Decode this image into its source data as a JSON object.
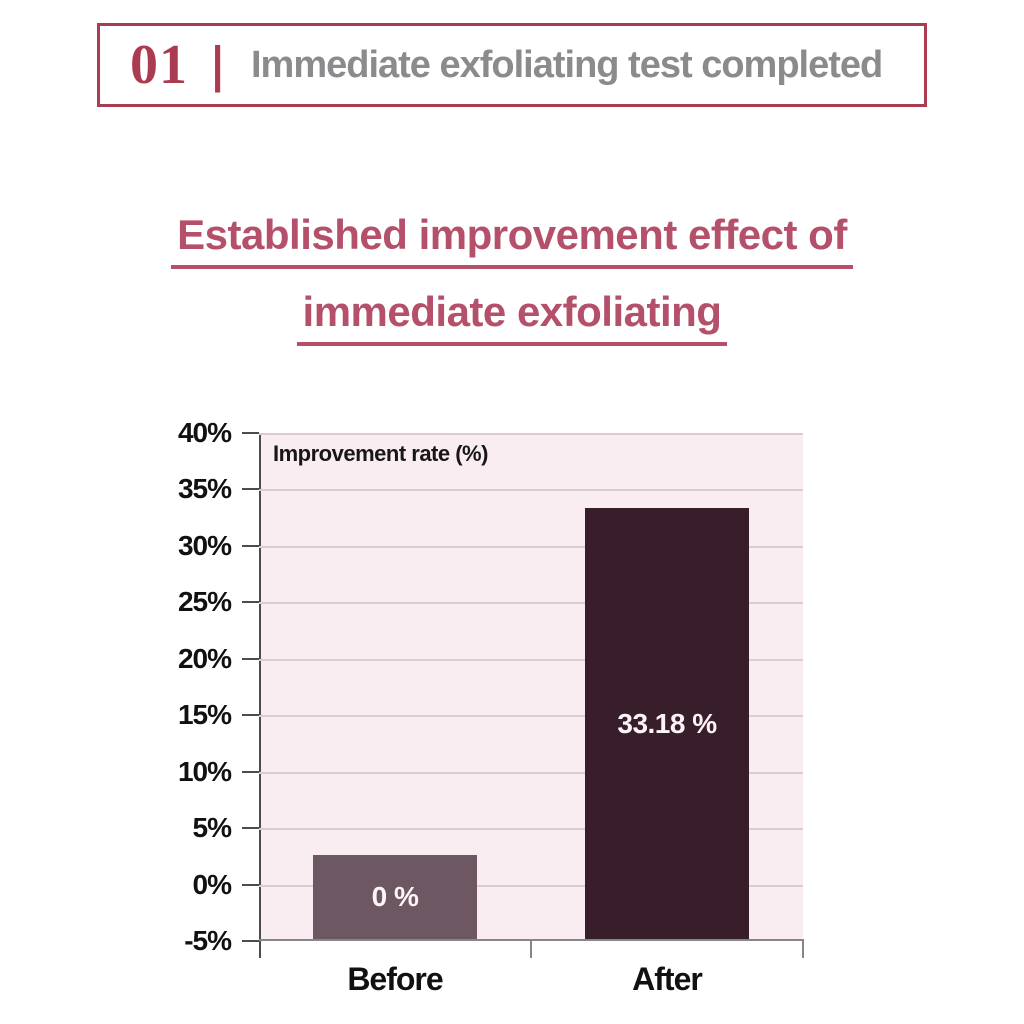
{
  "header": {
    "number": "01",
    "separator": "|",
    "title": "Immediate exfoliating test completed",
    "border_color": "#ab3b50",
    "number_color": "#ab3b50",
    "title_color": "#8b8b8e"
  },
  "main_title": {
    "line1": "Established improvement effect of",
    "line2": "immediate exfoliating",
    "color": "#b4506a"
  },
  "chart_data": {
    "type": "bar",
    "title": "Improvement rate (%)",
    "categories": [
      "Before",
      "After"
    ],
    "values": [
      0,
      33.18
    ],
    "bar_labels": [
      "0 %",
      "33.18 %"
    ],
    "bar_colors": [
      "#6c5762",
      "#381d2b"
    ],
    "bar_top_positions": [
      2.4,
      33.18
    ],
    "bar_base": -5,
    "ylim": [
      -5,
      40
    ],
    "ytick_step": 5,
    "ytick_labels": [
      "40%",
      "35%",
      "30%",
      "25%",
      "20%",
      "15%",
      "10%",
      "5%",
      "0%",
      "-5%"
    ],
    "xlabel": "",
    "ylabel": "",
    "grid": true,
    "legend": "none",
    "plot_bg": "#f9edf1",
    "gridline_color": "#dfc9d2",
    "value_label_color": "#fdf4f8"
  }
}
